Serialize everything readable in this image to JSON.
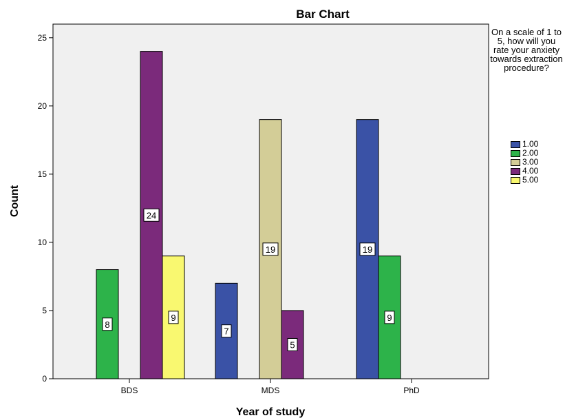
{
  "chart_data": {
    "type": "bar",
    "title": "Bar Chart",
    "xlabel": "Year of study",
    "ylabel": "Count",
    "categories": [
      "BDS",
      "MDS",
      "PhD"
    ],
    "ylim": [
      0,
      26
    ],
    "yticks": [
      0,
      5,
      10,
      15,
      20,
      25
    ],
    "legend_title": "On a scale of 1 to 5, how will you rate your anxiety towards extraction procedure?",
    "legend_position": "right",
    "series": [
      {
        "name": "1.00",
        "color": "#3a52a6",
        "values": [
          0,
          7,
          19
        ]
      },
      {
        "name": "2.00",
        "color": "#2db34a",
        "values": [
          8,
          0,
          9
        ]
      },
      {
        "name": "3.00",
        "color": "#d3cd97",
        "values": [
          0,
          19,
          0
        ]
      },
      {
        "name": "4.00",
        "color": "#7b2a7b",
        "values": [
          24,
          5,
          0
        ]
      },
      {
        "name": "5.00",
        "color": "#f9f870",
        "values": [
          9,
          0,
          0
        ]
      }
    ],
    "data_labels": true,
    "plot_background": "#f0f0f0"
  }
}
